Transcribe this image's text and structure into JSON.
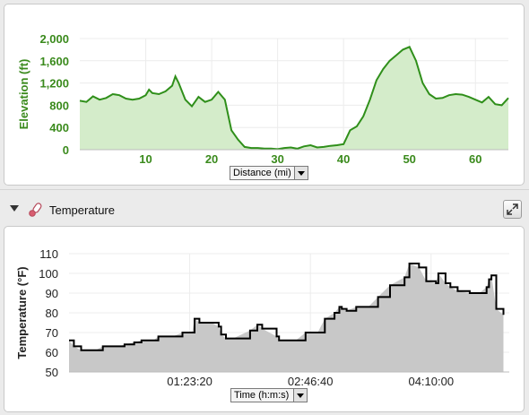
{
  "elevation_chart": {
    "ylabel": "Elevation (ft)",
    "unit_selector": "Distance (mi)",
    "chart_data": {
      "type": "area",
      "xlabel": "",
      "ylabel": "Elevation (ft)",
      "xlim": [
        0,
        65
      ],
      "ylim": [
        0,
        2000
      ],
      "x_ticks": [
        "10",
        "20",
        "30",
        "40",
        "50",
        "60"
      ],
      "y_ticks": [
        "0",
        "400",
        "800",
        "1,200",
        "1,600",
        "2,000"
      ],
      "grid": true,
      "x": [
        0,
        1,
        2,
        3,
        4,
        5,
        6,
        7,
        8,
        9,
        10,
        10.5,
        11,
        12,
        13,
        14,
        14.5,
        15,
        16,
        17,
        18,
        19,
        20,
        21,
        22,
        23,
        24,
        25,
        26,
        27,
        28,
        29,
        30,
        31,
        32,
        33,
        34,
        35,
        36,
        37,
        38,
        39,
        40,
        41,
        42,
        43,
        44,
        45,
        46,
        47,
        48,
        49,
        50,
        51,
        52,
        53,
        54,
        55,
        56,
        57,
        58,
        59,
        60,
        61,
        62,
        63,
        64,
        65
      ],
      "values": [
        880,
        860,
        960,
        900,
        930,
        1000,
        980,
        920,
        900,
        920,
        980,
        1080,
        1020,
        1000,
        1050,
        1150,
        1320,
        1200,
        900,
        780,
        950,
        860,
        900,
        1040,
        900,
        350,
        180,
        50,
        30,
        30,
        20,
        20,
        10,
        30,
        40,
        20,
        60,
        80,
        40,
        50,
        70,
        80,
        100,
        350,
        420,
        600,
        900,
        1250,
        1450,
        1600,
        1700,
        1800,
        1850,
        1600,
        1200,
        1000,
        920,
        930,
        980,
        1000,
        990,
        950,
        900,
        850,
        950,
        820,
        800,
        930
      ]
    }
  },
  "temperature_section": {
    "title": "Temperature",
    "ylabel": "Temperature (°F)",
    "unit_selector": "Time (h:m:s)",
    "chart_data": {
      "type": "area",
      "xlabel": "",
      "ylabel": "Temperature (°F)",
      "xlim": [
        0,
        18240
      ],
      "ylim": [
        50,
        110
      ],
      "x_ticks": [
        "01:23:20",
        "02:46:40",
        "04:10:00"
      ],
      "x_tick_seconds": [
        5000,
        10000,
        15000
      ],
      "y_ticks": [
        "50",
        "60",
        "70",
        "80",
        "90",
        "100",
        "110"
      ],
      "grid": true,
      "x": [
        0,
        200,
        500,
        1100,
        1400,
        2100,
        2300,
        2700,
        3000,
        3500,
        3700,
        4300,
        4700,
        5100,
        5200,
        5400,
        5900,
        6200,
        6300,
        6500,
        6800,
        7500,
        7800,
        8000,
        8600,
        8700,
        8900,
        9400,
        9800,
        10300,
        10600,
        11000,
        11200,
        11300,
        11500,
        11900,
        12400,
        12800,
        13300,
        13900,
        14100,
        14500,
        14800,
        15200,
        15300,
        15600,
        15800,
        16100,
        16600,
        17000,
        17300,
        17400,
        17500,
        17700,
        18000
      ],
      "values": [
        66,
        63,
        61,
        61,
        63,
        63,
        64,
        65,
        66,
        66,
        68,
        68,
        70,
        70,
        77,
        75,
        75,
        73,
        69,
        67,
        67,
        71,
        74,
        72,
        68,
        66,
        66,
        66,
        70,
        70,
        77,
        80,
        83,
        82,
        81,
        83,
        83,
        88,
        94,
        98,
        105,
        103,
        96,
        95,
        100,
        95,
        93,
        91,
        90,
        90,
        93,
        97,
        99,
        82,
        79
      ]
    }
  }
}
